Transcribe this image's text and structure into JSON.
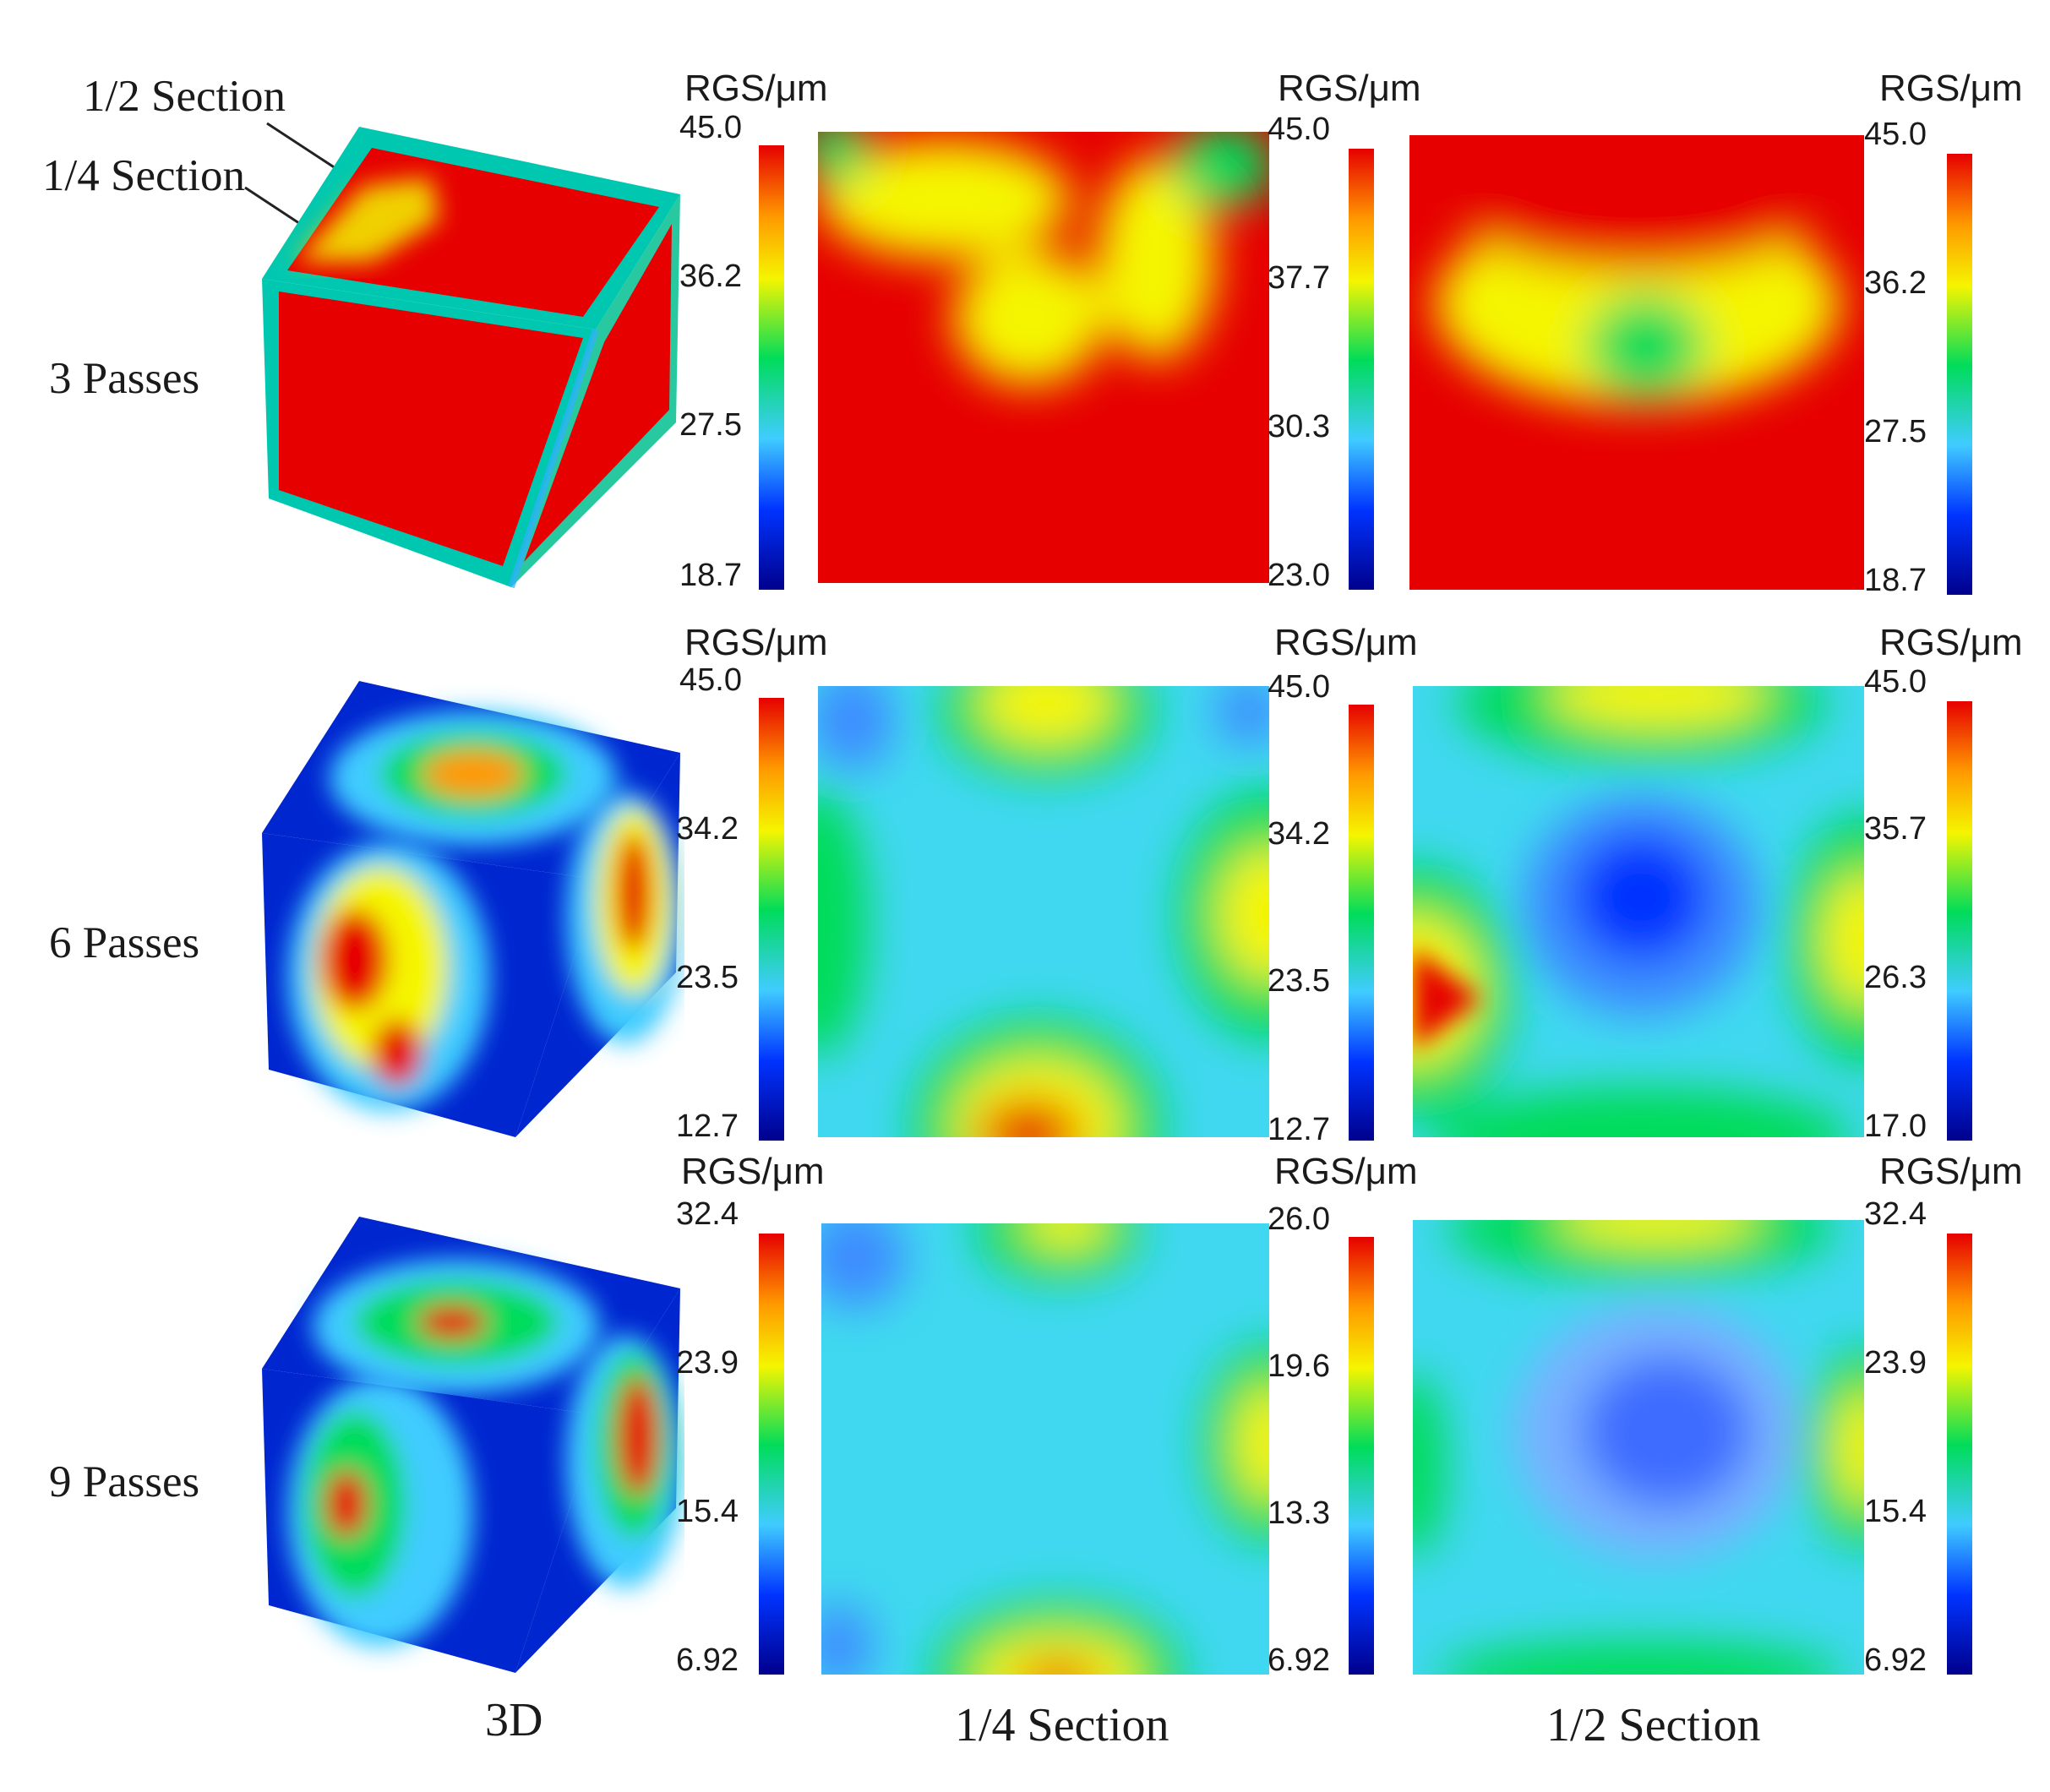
{
  "annotations": {
    "half_section": "1/2 Section",
    "quarter_section": "1/4 Section"
  },
  "column_labels": {
    "cube": "3D",
    "quarter": "1/4 Section",
    "half": "1/2 Section"
  },
  "unit_label": "RGS/μm",
  "colormap": [
    "#00008c",
    "#0033ff",
    "#40ccff",
    "#00dc5a",
    "#f5f500",
    "#ff9900",
    "#e60000"
  ],
  "rows": [
    {
      "label": "3 Passes",
      "quarter_ticks": [
        "45.0",
        "36.2",
        "27.5",
        "18.7"
      ],
      "half_ticks": [
        "45.0",
        "37.7",
        "30.3",
        "23.0"
      ],
      "third_ticks": [
        "45.0",
        "36.2",
        "27.5",
        "18.7"
      ]
    },
    {
      "label": "6 Passes",
      "quarter_ticks": [
        "45.0",
        "34.2",
        "23.5",
        "12.7"
      ],
      "half_ticks": [
        "45.0",
        "34.2",
        "23.5",
        "12.7"
      ],
      "third_ticks": [
        "45.0",
        "35.7",
        "26.3",
        "17.0"
      ]
    },
    {
      "label": "9 Passes",
      "quarter_ticks": [
        "32.4",
        "23.9",
        "15.4",
        "6.92"
      ],
      "half_ticks": [
        "26.0",
        "19.6",
        "13.3",
        "6.92"
      ],
      "third_ticks": [
        "32.4",
        "23.9",
        "15.4",
        "6.92"
      ]
    }
  ]
}
